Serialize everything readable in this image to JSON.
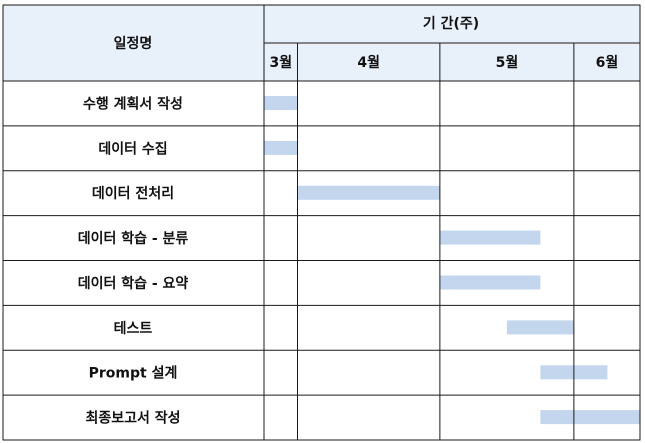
{
  "header": {
    "task_column_label": "일정명",
    "period_label": "기 간(주)"
  },
  "chart_data": {
    "type": "gantt",
    "months": [
      "3월",
      "4월",
      "5월",
      "6월"
    ],
    "month_weeks": [
      1,
      4.25,
      4,
      2
    ],
    "tasks": [
      {
        "name": "수행 계획서 작성",
        "start": 0,
        "end": 1
      },
      {
        "name": "데이터 수집",
        "start": 0,
        "end": 1
      },
      {
        "name": "데이터 전처리",
        "start": 1,
        "end": 5.25
      },
      {
        "name": "데이터 학습 - 분류",
        "start": 5.25,
        "end": 8.25
      },
      {
        "name": "데이터 학습 - 요약",
        "start": 5.25,
        "end": 8.25
      },
      {
        "name": "테스트",
        "start": 7.25,
        "end": 9.25
      },
      {
        "name": "Prompt 설계",
        "start": 8.25,
        "end": 10.25
      },
      {
        "name": "최종보고서 작성",
        "start": 8.25,
        "end": 11.25
      }
    ],
    "bar_color": "#c3d6ee",
    "header_color": "#e8f0fa"
  }
}
